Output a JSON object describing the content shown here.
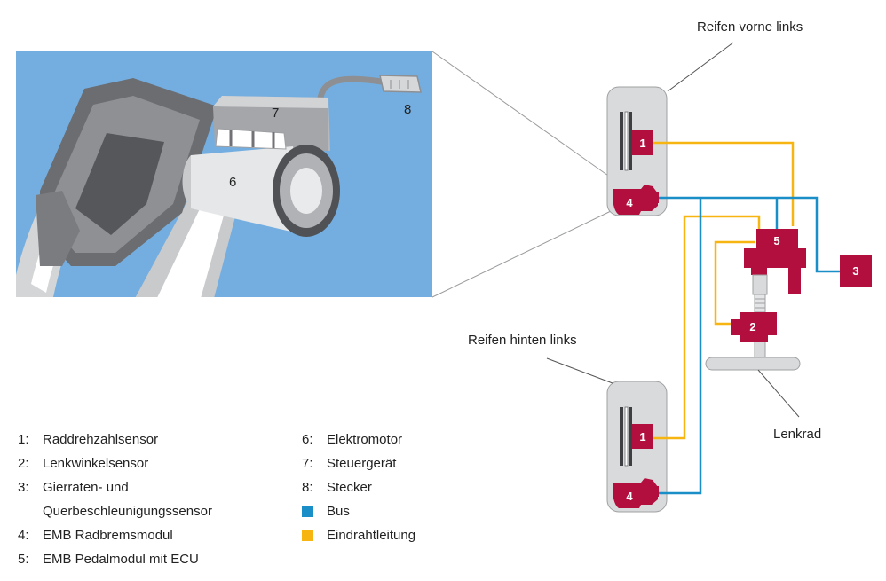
{
  "colors": {
    "bus": "#1a8ec6",
    "single_wire": "#f7b512",
    "component": "#b30f3e",
    "wheel_box": "#d9dadc",
    "photo_bg": "#74aee0"
  },
  "detail": {
    "label_6": "6",
    "label_7": "7",
    "label_8": "8"
  },
  "diagram": {
    "front_left_label": "Reifen vorne links",
    "rear_left_label": "Reifen hinten links",
    "steering_label": "Lenkrad",
    "front_sensor": "1",
    "front_brake": "4",
    "rear_sensor": "1",
    "rear_brake": "4",
    "pedal_module": "5",
    "steering_sensor": "2",
    "yaw_sensor": "3"
  },
  "legend_left": [
    {
      "key": "1:",
      "text": "Raddrehzahlsensor"
    },
    {
      "key": "2:",
      "text": "Lenkwinkelsensor"
    },
    {
      "key": "3:",
      "text": "Gierraten- und"
    },
    {
      "key": "",
      "text": "Querbeschleunigungssensor"
    },
    {
      "key": "4:",
      "text": "EMB Radbremsmodul"
    },
    {
      "key": "5:",
      "text": "EMB Pedalmodul mit ECU"
    }
  ],
  "legend_right": [
    {
      "key": "6:",
      "text": "Elektromotor"
    },
    {
      "key": "7:",
      "text": "Steuergerät"
    },
    {
      "key": "8:",
      "text": "Stecker"
    }
  ],
  "legend_swatches": [
    {
      "text": "Bus",
      "color": "#1a8ec6"
    },
    {
      "text": "Eindrahtleitung",
      "color": "#f7b512"
    }
  ]
}
